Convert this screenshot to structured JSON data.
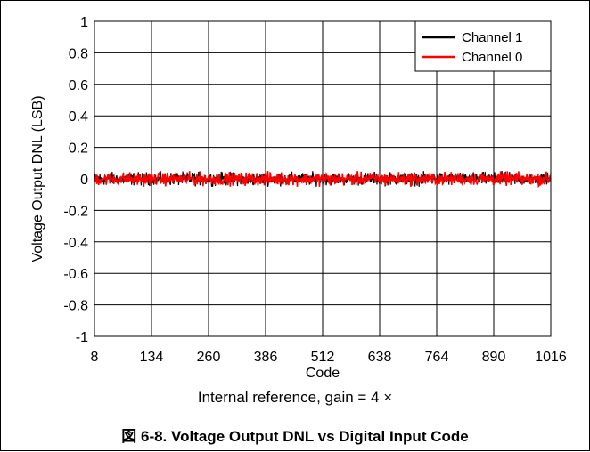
{
  "chart_data": {
    "type": "line",
    "xlabel": "Code",
    "ylabel": "Voltage Output DNL (LSB)",
    "xlim": [
      8,
      1016
    ],
    "ylim": [
      -1,
      1
    ],
    "x_ticks": [
      8,
      134,
      260,
      386,
      512,
      638,
      764,
      890,
      1016
    ],
    "y_ticks": [
      1,
      0.8,
      0.6,
      0.4,
      0.2,
      0,
      -0.2,
      -0.4,
      -0.6,
      -0.8,
      -1
    ],
    "y_tick_labels": [
      "1",
      "0.8",
      "0.6",
      "0.4",
      "0.2",
      "0",
      "-0.2",
      "-0.4",
      "-0.6",
      "-0.8",
      "-1"
    ],
    "grid": true,
    "legend_position": "top-right",
    "series": [
      {
        "name": "Channel 1",
        "color": "#000000",
        "x_start": 8,
        "x_end": 1016,
        "approx_min": -0.05,
        "approx_max": 0.05
      },
      {
        "name": "Channel 0",
        "color": "#ff0000",
        "x_start": 8,
        "x_end": 1016,
        "approx_min": -0.05,
        "approx_max": 0.05
      }
    ]
  },
  "caption": "Internal reference, gain = 4 ×",
  "figure_title": "図 6-8. Voltage Output DNL vs Digital Input Code"
}
